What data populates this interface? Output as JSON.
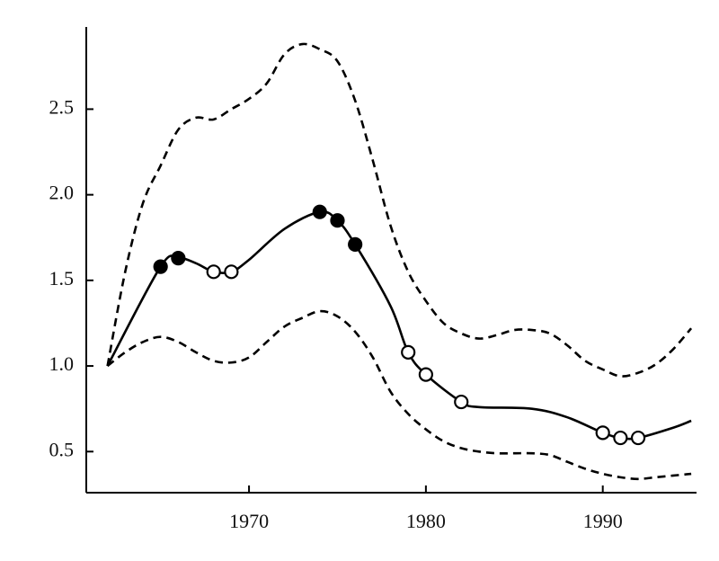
{
  "chart_data": {
    "type": "line",
    "xlim": [
      1960.8,
      1995.3
    ],
    "xticks": [
      1970,
      1980,
      1990
    ],
    "ylim": [
      0.26,
      2.98
    ],
    "yticks": [
      0.5,
      {
        "value": 1.0,
        "label": "1.0"
      },
      1.5,
      {
        "value": 2.0,
        "label": "2.0"
      },
      2.5
    ],
    "grid": false,
    "series": [
      {
        "color": "#000000",
        "style": "dashed",
        "x": [
          1962,
          1963,
          1964,
          1965,
          1966,
          1967,
          1968,
          1969,
          1970,
          1971,
          1972,
          1973,
          1974,
          1975,
          1976,
          1977,
          1978,
          1979,
          1980,
          1981,
          1982,
          1983,
          1984,
          1985,
          1986,
          1987,
          1988,
          1989,
          1990,
          1991,
          1992,
          1993,
          1994,
          1995
        ],
        "values": [
          1.0,
          1.55,
          1.95,
          2.17,
          2.38,
          2.45,
          2.44,
          2.5,
          2.56,
          2.65,
          2.82,
          2.88,
          2.85,
          2.78,
          2.55,
          2.2,
          1.82,
          1.55,
          1.38,
          1.25,
          1.19,
          1.16,
          1.18,
          1.21,
          1.21,
          1.19,
          1.12,
          1.03,
          0.98,
          0.94,
          0.96,
          1.01,
          1.1,
          1.22
        ]
      },
      {
        "color": "#000000",
        "style": "solid",
        "x": [
          1962,
          1965,
          1966,
          1967,
          1968,
          1969,
          1970,
          1972,
          1974,
          1975,
          1976,
          1978,
          1979,
          1980,
          1982,
          1983,
          1986,
          1988,
          1990,
          1991,
          1992,
          1994,
          1995
        ],
        "values": [
          1.0,
          1.58,
          1.63,
          1.6,
          1.55,
          1.55,
          1.62,
          1.8,
          1.9,
          1.85,
          1.71,
          1.35,
          1.08,
          0.95,
          0.79,
          0.76,
          0.75,
          0.7,
          0.61,
          0.58,
          0.58,
          0.64,
          0.68
        ]
      },
      {
        "color": "#000000",
        "style": "dashed",
        "x": [
          1962,
          1963,
          1964,
          1965,
          1966,
          1967,
          1968,
          1969,
          1970,
          1971,
          1972,
          1973,
          1974,
          1975,
          1976,
          1977,
          1978,
          1979,
          1980,
          1981,
          1982,
          1983,
          1984,
          1985,
          1986,
          1987,
          1988,
          1989,
          1990,
          1991,
          1992,
          1993,
          1994,
          1995
        ],
        "values": [
          1.0,
          1.08,
          1.14,
          1.17,
          1.14,
          1.08,
          1.03,
          1.02,
          1.05,
          1.14,
          1.23,
          1.28,
          1.32,
          1.29,
          1.2,
          1.05,
          0.85,
          0.72,
          0.63,
          0.56,
          0.52,
          0.5,
          0.49,
          0.49,
          0.49,
          0.48,
          0.44,
          0.4,
          0.37,
          0.35,
          0.34,
          0.35,
          0.36,
          0.37
        ]
      },
      {
        "color": "#000000",
        "marker": "filled",
        "x": [
          1965,
          1966,
          1974,
          1975,
          1976
        ],
        "values": [
          1.58,
          1.63,
          1.9,
          1.85,
          1.71
        ]
      },
      {
        "color": "#000000",
        "marker": "open",
        "x": [
          1968,
          1969,
          1979,
          1980,
          1982,
          1990,
          1991,
          1992
        ],
        "values": [
          1.55,
          1.55,
          1.08,
          0.95,
          0.79,
          0.61,
          0.58,
          0.58
        ]
      }
    ]
  }
}
